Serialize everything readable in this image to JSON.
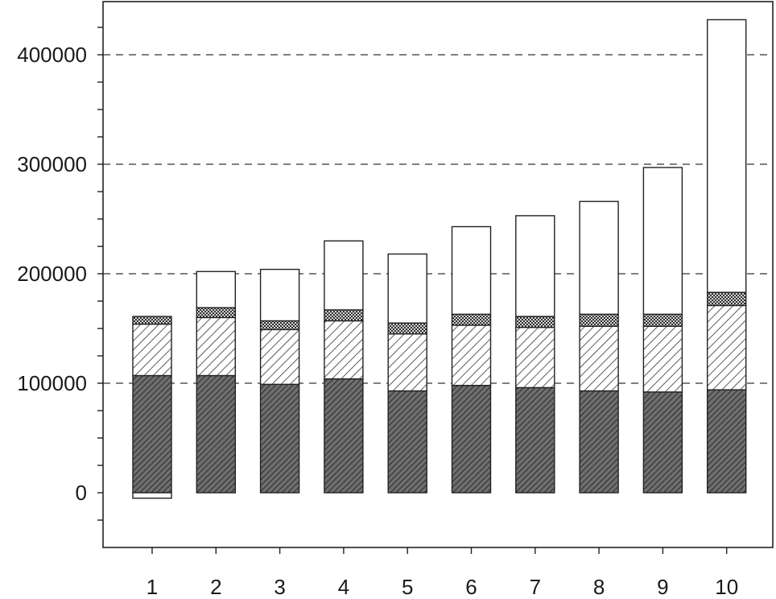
{
  "chart_data": {
    "type": "bar",
    "stacked": true,
    "title": "",
    "xlabel": "",
    "ylabel": "",
    "categories": [
      "1",
      "2",
      "3",
      "4",
      "5",
      "6",
      "7",
      "8",
      "9",
      "10"
    ],
    "series": [
      {
        "values": [
          107000,
          107000,
          99000,
          104000,
          93000,
          98000,
          96000,
          93000,
          92000,
          94000
        ],
        "pattern": "dense-hatch"
      },
      {
        "values": [
          47000,
          53000,
          50000,
          53000,
          52000,
          55000,
          55000,
          59000,
          60000,
          77000
        ],
        "pattern": "diagonal-hatch"
      },
      {
        "values": [
          7000,
          9000,
          8000,
          10000,
          10000,
          10000,
          10000,
          11000,
          11000,
          12000
        ],
        "pattern": "dotted"
      },
      {
        "values": [
          -5000,
          33000,
          47000,
          63000,
          63000,
          80000,
          92000,
          103000,
          134000,
          249000
        ],
        "pattern": "blank"
      }
    ],
    "ylim": [
      -50000,
      445000
    ],
    "yticks": [
      0,
      100000,
      200000,
      300000,
      400000
    ],
    "ytick_labels": [
      "0",
      "100000",
      "200000",
      "300000",
      "400000"
    ],
    "xtick_labels": [
      "1",
      "2",
      "3",
      "4",
      "5",
      "6",
      "7",
      "8",
      "9",
      "10"
    ],
    "grid": "horizontal dashed",
    "legend": "none"
  }
}
